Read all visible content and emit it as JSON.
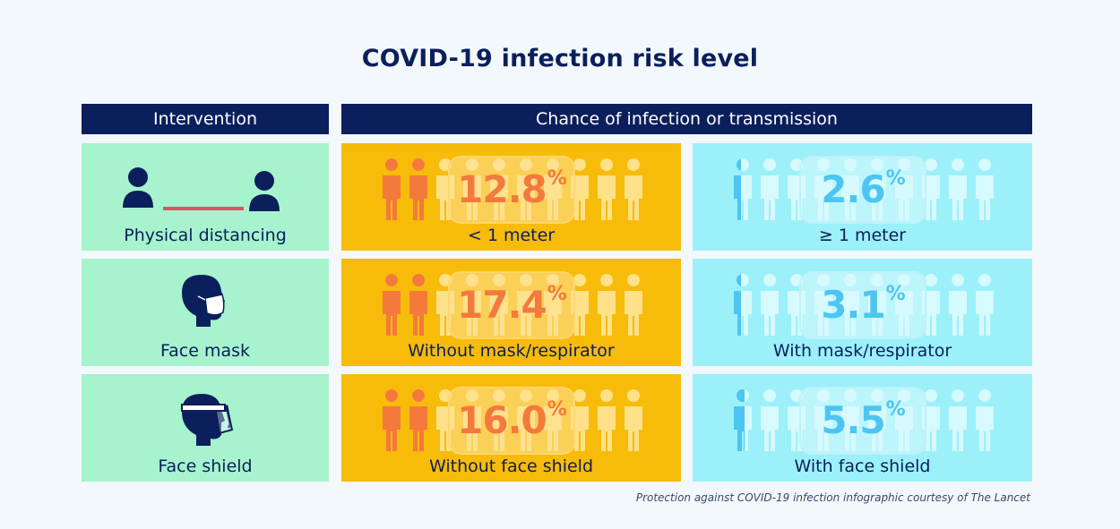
{
  "title": "COVID-19 infection risk level",
  "headers": {
    "intervention": "Intervention",
    "chance": "Chance of infection or transmission"
  },
  "rows": [
    {
      "intervention": "Physical distancing",
      "icon": "physical-distancing-icon",
      "without": {
        "value": "12.8",
        "unit": "%",
        "label": "< 1 meter",
        "infected_figures": 2
      },
      "with": {
        "value": "2.6",
        "unit": "%",
        "label": "≥ 1 meter",
        "infected_figures": 0.4
      }
    },
    {
      "intervention": "Face mask",
      "icon": "face-mask-icon",
      "without": {
        "value": "17.4",
        "unit": "%",
        "label": "Without mask/respirator",
        "infected_figures": 2
      },
      "with": {
        "value": "3.1",
        "unit": "%",
        "label": "With mask/respirator",
        "infected_figures": 0.4
      }
    },
    {
      "intervention": "Face shield",
      "icon": "face-shield-icon",
      "without": {
        "value": "16.0",
        "unit": "%",
        "label": "Without face shield",
        "infected_figures": 2
      },
      "with": {
        "value": "5.5",
        "unit": "%",
        "label": "With face shield",
        "infected_figures": 0.6
      }
    }
  ],
  "credit": "Protection against COVID-19 infection infographic courtesy of The Lancet",
  "colors": {
    "navy": "#0b1f5c",
    "green": "#a6f3cd",
    "orange_panel": "#f7bb0a",
    "cyan_panel": "#9cf0f9",
    "orange_text": "#f4793c",
    "cyan_text": "#4cc5f2",
    "divider": "#e05262"
  }
}
